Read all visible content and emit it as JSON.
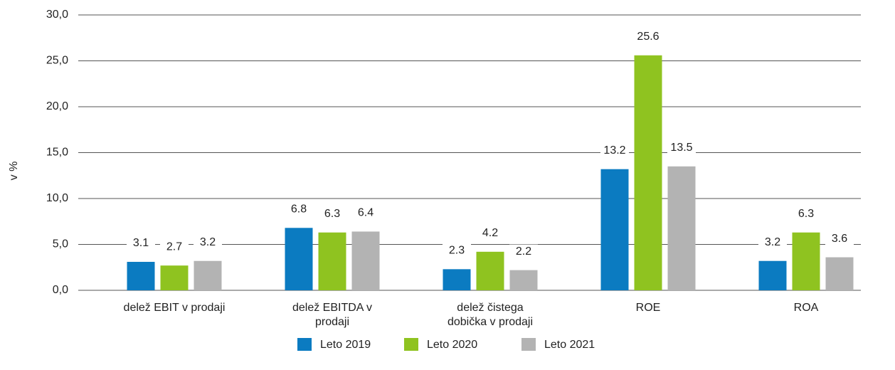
{
  "chart_data": {
    "type": "bar",
    "y_label": "v %",
    "categories": [
      "delež EBIT v prodaji",
      "delež EBITDA v prodaji",
      "delež čistega dobička v prodaji",
      "ROE",
      "ROA"
    ],
    "series": [
      {
        "name": "Leto 2019",
        "color": "#0b7bc1",
        "values": [
          3.1,
          6.8,
          2.3,
          13.2,
          3.2
        ]
      },
      {
        "name": "Leto 2020",
        "color": "#8fc320",
        "values": [
          2.7,
          6.3,
          4.2,
          25.6,
          6.3
        ]
      },
      {
        "name": "Leto 2021",
        "color": "#b3b3b3",
        "values": [
          3.2,
          6.4,
          2.2,
          13.5,
          3.6
        ]
      }
    ],
    "ylim": [
      0,
      30
    ],
    "yticks": [
      {
        "value": 0,
        "label": "0,0"
      },
      {
        "value": 5,
        "label": "5,0"
      },
      {
        "value": 10,
        "label": "10,0"
      },
      {
        "value": 15,
        "label": "15,0"
      },
      {
        "value": 20,
        "label": "20,0"
      },
      {
        "value": 25,
        "label": "25,0"
      },
      {
        "value": 30,
        "label": "30,0"
      }
    ],
    "grid": true,
    "legend": "bottom"
  }
}
